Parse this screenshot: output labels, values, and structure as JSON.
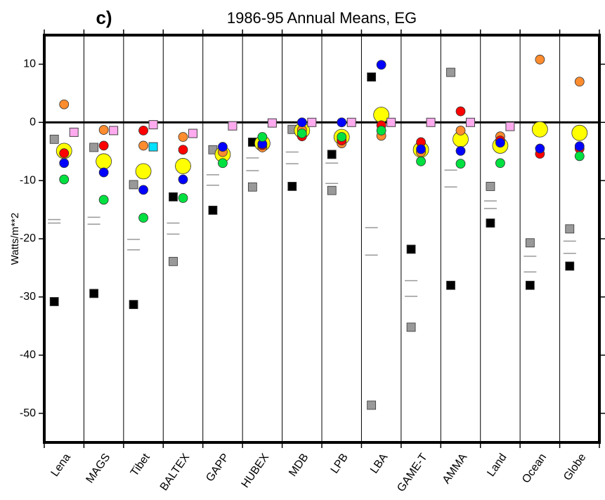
{
  "chart_data": {
    "type": "category-scatter",
    "panel_label": "c)",
    "title": "1986-95 Annual Means, EG",
    "y_label": "Watts/m**2",
    "categories": [
      "Lena",
      "MAGS",
      "Tibet",
      "BALTEX",
      "GAPP",
      "HUBEX",
      "MDB",
      "LPB",
      "LBA",
      "GAME-T",
      "AMMA",
      "Land",
      "Ocean",
      "Globe"
    ],
    "ylim": [
      -55,
      15
    ],
    "yticks": [
      -50,
      -40,
      -30,
      -20,
      -10,
      0,
      10
    ],
    "reference_line": 0,
    "series": [
      {
        "marker": "dash",
        "color": "#999999",
        "values": [
          -16.7,
          -16.3,
          -20.1,
          -17.3,
          -9.0,
          -6.1,
          -5.1,
          -7.0,
          -18.1,
          -27.2,
          -8.2,
          -13.5,
          -23.0,
          -20.4
        ]
      },
      {
        "marker": "dash",
        "color": "#999999",
        "values": [
          -17.3,
          -17.5,
          -21.9,
          -19.2,
          -10.8,
          -8.3,
          -7.1,
          -10.5,
          -22.8,
          -29.9,
          -11.1,
          -14.8,
          -25.7,
          -22.5
        ]
      },
      {
        "marker": "square",
        "color": "#000000",
        "values": [
          -30.8,
          -29.4,
          -31.3,
          -12.8,
          -15.1,
          -3.4,
          -11.0,
          -5.5,
          7.8,
          -21.8,
          -28.0,
          -17.3,
          -28.0,
          -24.7
        ]
      },
      {
        "marker": "square",
        "color": "#999999",
        "values": [
          -2.9,
          -4.3,
          -10.7,
          -23.9,
          -4.7,
          -11.1,
          -1.2,
          -11.7,
          -48.6,
          -35.2,
          8.6,
          -11.0,
          -20.7,
          -18.3
        ]
      },
      {
        "marker": "big-circle",
        "color": "#ffff00",
        "values": [
          -4.9,
          -6.7,
          -8.4,
          -7.5,
          -5.5,
          -3.6,
          -1.4,
          -2.5,
          1.3,
          -4.7,
          -2.9,
          -4.0,
          -1.2,
          -1.8
        ]
      },
      {
        "marker": "circle",
        "color": "#ff8c2e",
        "values": [
          3.1,
          -1.3,
          -4.0,
          -2.5,
          -5.1,
          -4.3,
          -1.3,
          -3.6,
          -2.3,
          -5.1,
          -1.4,
          -2.4,
          10.8,
          7.0
        ]
      },
      {
        "marker": "circle",
        "color": "#ff0000",
        "values": [
          -5.3,
          -4.0,
          -1.4,
          -4.7,
          null,
          -3.9,
          -2.4,
          -3.1,
          -0.5,
          -3.4,
          1.9,
          -3.1,
          -5.4,
          -4.5
        ]
      },
      {
        "marker": "circle",
        "color": "#0000ff",
        "values": [
          -7.0,
          -8.6,
          -11.6,
          -9.8,
          -4.2,
          -3.7,
          0.0,
          0.0,
          9.9,
          -4.6,
          -4.9,
          -3.5,
          -4.5,
          -4.1
        ]
      },
      {
        "marker": "circle",
        "color": "#00e040",
        "values": [
          -9.8,
          -13.3,
          -16.4,
          -13.0,
          -7.0,
          -2.5,
          -1.9,
          -2.5,
          -1.4,
          -6.7,
          -7.1,
          -7.0,
          null,
          -5.8
        ]
      },
      {
        "marker": "square-right",
        "color": "#00e0ff",
        "values": [
          null,
          null,
          -4.2,
          null,
          null,
          null,
          null,
          null,
          null,
          null,
          null,
          null,
          null,
          null
        ]
      },
      {
        "marker": "square-right",
        "color": "#ffaaee",
        "values": [
          -1.7,
          -1.4,
          -0.4,
          -1.9,
          -0.6,
          -0.1,
          0.0,
          0.0,
          0.0,
          0.0,
          0.0,
          -0.7,
          null,
          null
        ]
      }
    ]
  }
}
